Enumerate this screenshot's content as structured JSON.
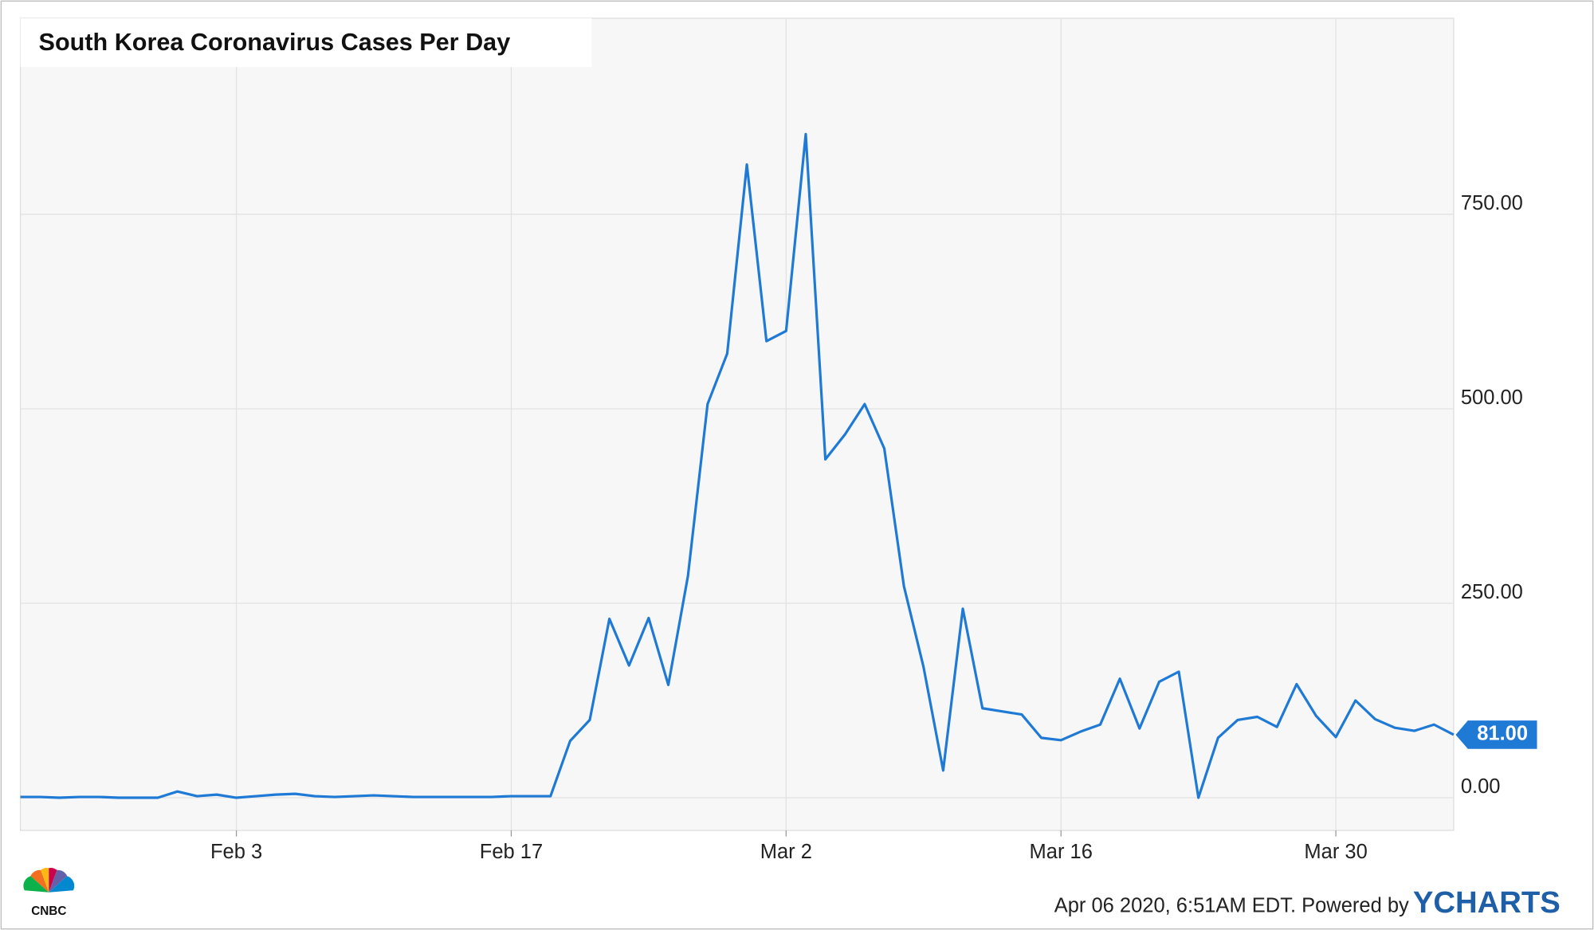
{
  "chart_data": {
    "type": "line",
    "title": "South Korea Coronavirus Cases Per Day",
    "categories": [
      null,
      null,
      null,
      null,
      null,
      null,
      null,
      null,
      null,
      null,
      null,
      "Feb 3",
      null,
      null,
      null,
      null,
      null,
      null,
      null,
      null,
      null,
      null,
      null,
      null,
      null,
      "Feb 17",
      null,
      null,
      null,
      null,
      null,
      null,
      null,
      null,
      null,
      null,
      null,
      null,
      null,
      "Mar 2",
      null,
      null,
      null,
      null,
      null,
      null,
      null,
      null,
      null,
      null,
      null,
      null,
      null,
      "Mar 16",
      null,
      null,
      null,
      null,
      null,
      null,
      null,
      null,
      null,
      null,
      null,
      null,
      null,
      "Mar 30",
      null,
      null,
      null,
      null,
      null,
      null
    ],
    "series": [
      {
        "color": "#1f7ad6",
        "values": [
          1,
          1,
          0,
          1,
          1,
          0,
          0,
          0,
          8,
          2,
          4,
          0,
          2,
          4,
          5,
          2,
          1,
          2,
          3,
          2,
          1,
          1,
          1,
          1,
          1,
          2,
          2,
          2,
          73,
          100,
          230,
          170,
          231,
          145,
          285,
          506,
          571,
          814,
          587,
          600,
          853,
          435,
          467,
          506,
          449,
          272,
          168,
          35,
          243,
          115,
          111,
          107,
          77,
          74,
          85,
          94,
          153,
          89,
          149,
          162,
          0,
          77,
          100,
          104,
          91,
          146,
          105,
          78,
          125,
          101,
          90,
          86,
          94,
          81
        ],
        "value_labels": [
          null,
          null,
          null,
          null,
          null,
          null,
          null,
          null,
          null,
          null,
          null,
          null,
          null,
          null,
          null,
          null,
          null,
          null,
          null,
          null,
          null,
          null,
          null,
          null,
          null,
          null,
          null,
          null,
          null,
          null,
          null,
          null,
          null,
          null,
          null,
          null,
          null,
          null,
          null,
          null,
          null,
          null,
          null,
          null,
          null,
          null,
          null,
          null,
          null,
          null,
          null,
          null,
          null,
          null,
          null,
          null,
          null,
          null,
          null,
          null,
          null,
          null,
          null,
          null,
          null,
          null,
          null,
          null,
          null,
          null,
          null,
          null,
          null,
          "81.00"
        ]
      }
    ],
    "ylim": [
      -42,
      1002
    ],
    "yticks": [
      {
        "value": 0,
        "label": "0.00"
      },
      {
        "value": 250,
        "label": "250.00"
      },
      {
        "value": 500,
        "label": "500.00"
      },
      {
        "value": 750,
        "label": "750.00"
      }
    ],
    "grid": true,
    "footer": "Apr 06 2020, 6:51AM EDT. Powered by",
    "brand": "YCHARTS",
    "logo": "CNBC"
  }
}
